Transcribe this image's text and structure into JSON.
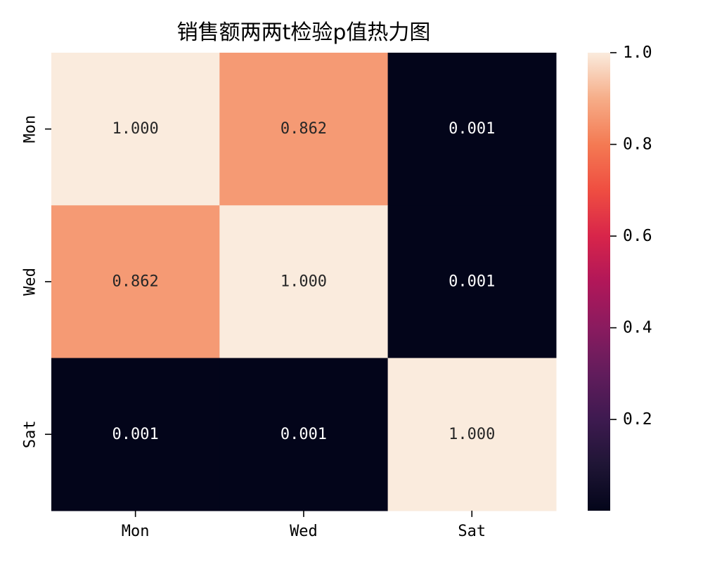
{
  "chart_data": {
    "type": "heatmap",
    "title": "销售额两两t检验p值热力图",
    "xlabel": "",
    "ylabel": "",
    "x_categories": [
      "Mon",
      "Wed",
      "Sat"
    ],
    "y_categories": [
      "Mon",
      "Wed",
      "Sat"
    ],
    "values": [
      [
        1.0,
        0.862,
        0.001
      ],
      [
        0.862,
        1.0,
        0.001
      ],
      [
        0.001,
        0.001,
        1.0
      ]
    ],
    "cell_labels": [
      [
        "1.000",
        "0.862",
        "0.001"
      ],
      [
        "0.862",
        "1.000",
        "0.001"
      ],
      [
        "0.001",
        "0.001",
        "1.000"
      ]
    ],
    "colormap": "rocket",
    "colorbar": {
      "range": [
        0.001,
        1.0
      ],
      "ticks": [
        0.2,
        0.4,
        0.6,
        0.8,
        1.0
      ],
      "tick_labels": [
        "0.2",
        "0.4",
        "0.6",
        "0.8",
        "1.0"
      ]
    }
  }
}
